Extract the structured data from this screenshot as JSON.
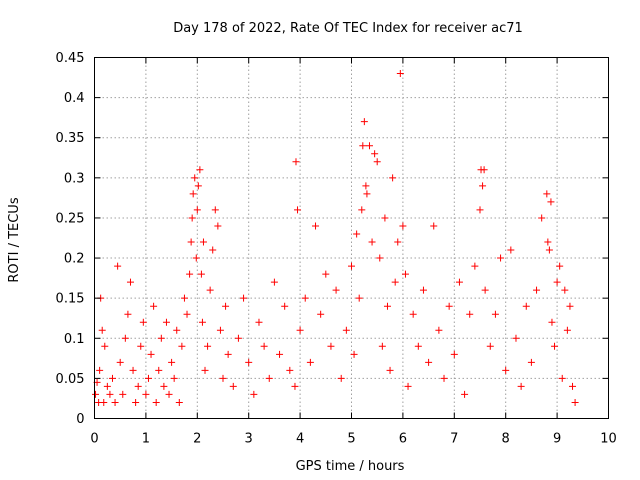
{
  "chart_data": {
    "type": "scatter",
    "title": "Day 178 of 2022, Rate Of TEC Index for receiver ac71",
    "xlabel": "GPS time / hours",
    "ylabel": "ROTI / TECUs",
    "xlim": [
      0,
      10
    ],
    "ylim": [
      0,
      0.45
    ],
    "x_ticks": [
      "0",
      "1",
      "2",
      "3",
      "4",
      "5",
      "6",
      "7",
      "8",
      "9",
      "10"
    ],
    "y_ticks": [
      "0",
      "0.05",
      "0.1",
      "0.15",
      "0.2",
      "0.25",
      "0.3",
      "0.35",
      "0.4",
      "0.45"
    ],
    "grid": true,
    "marker": "+",
    "series": [
      {
        "name": "ROTI",
        "color": "#ff0000",
        "x": [
          0.02,
          0.05,
          0.08,
          0.1,
          0.12,
          0.15,
          0.18,
          0.2,
          0.25,
          0.3,
          0.35,
          0.4,
          0.45,
          0.5,
          0.55,
          0.6,
          0.65,
          0.7,
          0.75,
          0.8,
          0.85,
          0.9,
          0.95,
          1.0,
          1.05,
          1.1,
          1.15,
          1.2,
          1.25,
          1.3,
          1.35,
          1.4,
          1.45,
          1.5,
          1.55,
          1.6,
          1.65,
          1.7,
          1.75,
          1.8,
          1.85,
          1.88,
          1.9,
          1.92,
          1.95,
          1.98,
          2.0,
          2.02,
          2.05,
          2.08,
          2.1,
          2.12,
          2.15,
          2.2,
          2.25,
          2.3,
          2.35,
          2.4,
          2.45,
          2.5,
          2.55,
          2.6,
          2.7,
          2.8,
          2.9,
          3.0,
          3.1,
          3.2,
          3.3,
          3.4,
          3.5,
          3.6,
          3.7,
          3.8,
          3.9,
          3.92,
          3.95,
          4.0,
          4.1,
          4.2,
          4.3,
          4.4,
          4.5,
          4.6,
          4.7,
          4.8,
          4.9,
          5.0,
          5.05,
          5.1,
          5.15,
          5.2,
          5.22,
          5.25,
          5.28,
          5.3,
          5.35,
          5.4,
          5.45,
          5.5,
          5.55,
          5.6,
          5.65,
          5.7,
          5.75,
          5.8,
          5.85,
          5.9,
          5.95,
          6.0,
          6.05,
          6.1,
          6.2,
          6.3,
          6.4,
          6.5,
          6.6,
          6.7,
          6.8,
          6.9,
          7.0,
          7.1,
          7.2,
          7.3,
          7.4,
          7.5,
          7.52,
          7.55,
          7.58,
          7.6,
          7.7,
          7.8,
          7.9,
          8.0,
          8.1,
          8.2,
          8.3,
          8.4,
          8.5,
          8.6,
          8.7,
          8.8,
          8.82,
          8.85,
          8.88,
          8.9,
          8.95,
          9.0,
          9.05,
          9.1,
          9.15,
          9.2,
          9.25,
          9.3,
          9.35
        ],
        "y": [
          0.03,
          0.045,
          0.02,
          0.06,
          0.15,
          0.11,
          0.02,
          0.09,
          0.04,
          0.03,
          0.05,
          0.02,
          0.19,
          0.07,
          0.03,
          0.1,
          0.13,
          0.17,
          0.06,
          0.02,
          0.04,
          0.09,
          0.12,
          0.03,
          0.05,
          0.08,
          0.14,
          0.02,
          0.06,
          0.1,
          0.04,
          0.12,
          0.03,
          0.07,
          0.05,
          0.11,
          0.02,
          0.09,
          0.15,
          0.13,
          0.18,
          0.22,
          0.25,
          0.28,
          0.3,
          0.2,
          0.26,
          0.29,
          0.31,
          0.18,
          0.12,
          0.22,
          0.06,
          0.09,
          0.16,
          0.21,
          0.26,
          0.24,
          0.11,
          0.05,
          0.14,
          0.08,
          0.04,
          0.1,
          0.15,
          0.07,
          0.03,
          0.12,
          0.09,
          0.05,
          0.17,
          0.08,
          0.14,
          0.06,
          0.04,
          0.32,
          0.26,
          0.11,
          0.15,
          0.07,
          0.24,
          0.13,
          0.18,
          0.09,
          0.16,
          0.05,
          0.11,
          0.19,
          0.08,
          0.23,
          0.15,
          0.26,
          0.34,
          0.37,
          0.29,
          0.28,
          0.34,
          0.22,
          0.33,
          0.32,
          0.2,
          0.09,
          0.25,
          0.14,
          0.06,
          0.3,
          0.17,
          0.22,
          0.43,
          0.24,
          0.18,
          0.04,
          0.13,
          0.09,
          0.16,
          0.07,
          0.24,
          0.11,
          0.05,
          0.14,
          0.08,
          0.17,
          0.03,
          0.13,
          0.19,
          0.26,
          0.31,
          0.29,
          0.31,
          0.16,
          0.09,
          0.13,
          0.2,
          0.06,
          0.21,
          0.1,
          0.04,
          0.14,
          0.07,
          0.16,
          0.25,
          0.28,
          0.22,
          0.21,
          0.27,
          0.12,
          0.09,
          0.17,
          0.19,
          0.05,
          0.16,
          0.11,
          0.14,
          0.04,
          0.02
        ]
      }
    ]
  }
}
